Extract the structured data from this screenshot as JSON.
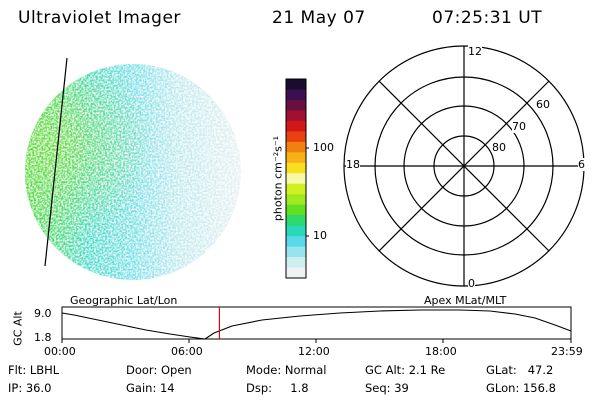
{
  "header": {
    "instrument": "Ultraviolet Imager",
    "date": "21 May 07",
    "time": "07:25:31 UT"
  },
  "colorbar": {
    "unit_label": "photon cm⁻²s⁻¹",
    "tick_labels": [
      "100",
      "10"
    ],
    "colors": [
      "#1a0c2e",
      "#3a1050",
      "#6a1040",
      "#a01030",
      "#d01818",
      "#e84010",
      "#f08010",
      "#f8b018",
      "#f8e020",
      "#f8f8a8",
      "#d0f020",
      "#a0e820",
      "#60e020",
      "#30d870",
      "#28d8b8",
      "#58d8e8",
      "#98e4ee",
      "#d0eef0",
      "#eef2f2"
    ]
  },
  "polar": {
    "mlt_labels": {
      "top": "12",
      "right": "6",
      "bottom": "0",
      "left": "18"
    },
    "lat_labels": [
      "60",
      "70",
      "80"
    ]
  },
  "timeline": {
    "left_label": "Geographic Lat/Lon",
    "right_label": "Apex MLat/MLT",
    "y_axis_title": "GC Alt",
    "y_ticks": [
      "9.0",
      "1.8"
    ],
    "x_ticks": [
      "00:00",
      "06:00",
      "12:00",
      "18:00",
      "23:59"
    ],
    "current_time_hours": 7.42
  },
  "info": {
    "flt": "Flt: LBHL",
    "ip": "IP: 36.0",
    "door": "Door: Open",
    "gain": "Gain: 14",
    "mode": "Mode: Normal",
    "dsp": "Dsp:     1.8",
    "gc_alt": "GC Alt: 2.1 Re",
    "seq": "Seq: 39",
    "glat": "GLat:   47.2",
    "glon": "GLon: 156.8"
  }
}
